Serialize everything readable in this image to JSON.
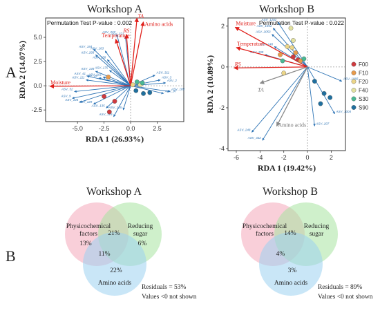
{
  "figure": {
    "panel_a_label": "A",
    "panel_b_label": "B"
  },
  "chart_data": [
    {
      "type": "scatter",
      "title": "Workshop A",
      "xlabel": "RDA 1 (26.93%)",
      "ylabel": "RDA 2 (14.07%)",
      "xlim": [
        -8,
        5
      ],
      "ylim": [
        -3.7,
        7.0
      ],
      "xticks": [
        "-5.0",
        "-2.5",
        "0.0",
        "2.5"
      ],
      "yticks": [
        "-2.5",
        "0.0",
        "2.5",
        "5.0"
      ],
      "annotation": "Permutation Test P-value : 0.002",
      "env_vectors": [
        {
          "name": "TA",
          "x": 0.6,
          "y": 7.0
        },
        {
          "name": "Amino acids",
          "x": 1.2,
          "y": 6.6
        },
        {
          "name": "RS",
          "x": -0.4,
          "y": 5.3
        },
        {
          "name": "Temperature",
          "x": -1.4,
          "y": 4.8
        },
        {
          "name": "Moisture",
          "x": -7.6,
          "y": -0.05
        }
      ],
      "species_vectors": [
        {
          "name": "ASV_227",
          "x": -1.3,
          "y": 5.3
        },
        {
          "name": "ASV_371",
          "x": -0.5,
          "y": 5.1
        },
        {
          "name": "ASV_184",
          "x": -3.5,
          "y": 3.8
        },
        {
          "name": "ASV_183",
          "x": -2.4,
          "y": 3.6
        },
        {
          "name": "ASV_268",
          "x": -3.3,
          "y": 3.2
        },
        {
          "name": "ASV_158",
          "x": -2.2,
          "y": 2.7
        },
        {
          "name": "ASV_146",
          "x": -3.3,
          "y": 1.5
        },
        {
          "name": "ASV_175",
          "x": -2.0,
          "y": 1.6
        },
        {
          "name": "ASV_41",
          "x": -4.1,
          "y": 1.0
        },
        {
          "name": "ASV_16",
          "x": -3.0,
          "y": 0.8
        },
        {
          "name": "ASV_111",
          "x": -4.2,
          "y": 0.6
        },
        {
          "name": "ASV_101",
          "x": -2.6,
          "y": 0.9
        },
        {
          "name": "ASV_52",
          "x": -5.3,
          "y": -0.6
        },
        {
          "name": "ASV_9",
          "x": -5.5,
          "y": -1.3
        },
        {
          "name": "ASV_144",
          "x": -4.8,
          "y": -1.7
        },
        {
          "name": "ASV_129",
          "x": -3.5,
          "y": -1.9
        },
        {
          "name": "ASV_135",
          "x": -2.3,
          "y": -2.3
        },
        {
          "name": "ASV_176",
          "x": -1.6,
          "y": -3.2
        },
        {
          "name": "ASV_155",
          "x": -0.7,
          "y": -2.5
        },
        {
          "name": "ASV_311",
          "x": 2.3,
          "y": 1.1
        },
        {
          "name": "ASV_3",
          "x": 2.8,
          "y": 0.6
        },
        {
          "name": "ASV_2",
          "x": 3.3,
          "y": 0.3
        },
        {
          "name": "ASV_189",
          "x": 3.7,
          "y": -0.6
        },
        {
          "name": "ASV_97",
          "x": 3.1,
          "y": -0.8
        }
      ],
      "samples": [
        {
          "group": "F00",
          "x": -2.5,
          "y": -1.1
        },
        {
          "group": "F00",
          "x": -2.0,
          "y": -2.7
        },
        {
          "group": "F00",
          "x": -1.5,
          "y": -1.6
        },
        {
          "group": "F10",
          "x": -2.1,
          "y": 0.9
        },
        {
          "group": "F20",
          "x": 0.2,
          "y": 0.1
        },
        {
          "group": "F40",
          "x": 0.9,
          "y": 0.1
        },
        {
          "group": "S30",
          "x": 0.6,
          "y": 0.4
        },
        {
          "group": "S30",
          "x": 1.1,
          "y": 0.3
        },
        {
          "group": "S90",
          "x": 1.2,
          "y": -0.8
        },
        {
          "group": "S90",
          "x": 1.8,
          "y": -0.7
        },
        {
          "group": "S90",
          "x": 0.5,
          "y": -0.5
        }
      ]
    },
    {
      "type": "scatter",
      "title": "Workshop B",
      "xlabel": "RDA 1 (19.42%)",
      "ylabel": "RDA 2 (10.89%)",
      "xlim": [
        -6.7,
        3.2
      ],
      "ylim": [
        -4.1,
        2.4
      ],
      "xticks": [
        "-6",
        "-4",
        "-2",
        "0",
        "2"
      ],
      "yticks": [
        "-4",
        "-2",
        "0",
        "2"
      ],
      "annotation": "Permutation Test P-value : 0.022",
      "env_vectors": [
        {
          "name": "Moisture",
          "x": -6.1,
          "y": 1.95
        },
        {
          "name": "Temperature",
          "x": -6.0,
          "y": 0.95
        },
        {
          "name": "RS",
          "x": -6.2,
          "y": -0.05
        },
        {
          "name": "TA",
          "x": -4.0,
          "y": -0.8,
          "muted": true
        },
        {
          "name": "Amino acids",
          "x": -2.6,
          "y": -2.9,
          "muted": true
        }
      ],
      "species_vectors": [
        {
          "name": "ASV_1202",
          "x": -2.5,
          "y": 2.2
        },
        {
          "name": "ASV_1051",
          "x": -2.9,
          "y": 1.9
        },
        {
          "name": "ASV_2053",
          "x": -3.0,
          "y": 1.6
        },
        {
          "name": "ASV_148",
          "x": -2.8,
          "y": 1.0
        },
        {
          "name": "ASV_199",
          "x": -3.6,
          "y": 0.6
        },
        {
          "name": "ASV_1066",
          "x": 2.9,
          "y": -0.7
        },
        {
          "name": "ASV_1004",
          "x": 2.3,
          "y": -2.3
        },
        {
          "name": "ASV_248",
          "x": -4.7,
          "y": -3.2
        },
        {
          "name": "ASV_332",
          "x": -3.8,
          "y": -3.6
        },
        {
          "name": "ASV_207",
          "x": 0.6,
          "y": -2.9
        }
      ],
      "samples": [
        {
          "group": "F00",
          "x": -1.2,
          "y": 0.5
        },
        {
          "group": "F00",
          "x": -0.8,
          "y": 0.35
        },
        {
          "group": "F10",
          "x": -1.0,
          "y": 0.7
        },
        {
          "group": "F10",
          "x": -2.3,
          "y": 0.6
        },
        {
          "group": "F10",
          "x": -0.6,
          "y": 0.3
        },
        {
          "group": "F20",
          "x": -1.3,
          "y": 0.95
        },
        {
          "group": "F20",
          "x": -1.7,
          "y": 1.0
        },
        {
          "group": "F20",
          "x": -2.0,
          "y": -0.3
        },
        {
          "group": "F40",
          "x": -1.4,
          "y": 1.9
        },
        {
          "group": "F40",
          "x": -1.2,
          "y": 1.3
        },
        {
          "group": "S30",
          "x": -2.1,
          "y": 0.3
        },
        {
          "group": "S30",
          "x": -0.3,
          "y": 0.4
        },
        {
          "group": "S90",
          "x": 0.6,
          "y": -0.7
        },
        {
          "group": "S90",
          "x": 1.4,
          "y": -1.3
        },
        {
          "group": "S90",
          "x": 1.9,
          "y": -1.5
        },
        {
          "group": "S90",
          "x": 1.1,
          "y": -1.8
        }
      ],
      "legend": {
        "placement": "right",
        "entries": [
          {
            "name": "F00",
            "color": "#d03a3f"
          },
          {
            "name": "F10",
            "color": "#e89a4a"
          },
          {
            "name": "F20",
            "color": "#ecd688"
          },
          {
            "name": "F40",
            "color": "#e3e2a0"
          },
          {
            "name": "S30",
            "color": "#49b994"
          },
          {
            "name": "S90",
            "color": "#1f6f9e"
          }
        ]
      }
    },
    {
      "type": "venn",
      "title": "Workshop A",
      "sets": [
        "Physicochemical factors",
        "Reducing sugar",
        "Amino acids"
      ],
      "set_label_lines": [
        [
          "Physicochemical",
          "factors"
        ],
        [
          "Reducing",
          "sugar"
        ],
        [
          "Amino acids"
        ]
      ],
      "regions": {
        "physicochemical_only": "13%",
        "reducing_sugar_only": "6%",
        "amino_acids_only": "22%",
        "physicochemical_reducing": "21%",
        "physicochemical_amino": "11%"
      },
      "residuals": "Residuals = 53%",
      "note": "Values <0 not shown",
      "colors": {
        "physicochemical": "#f4a7b9",
        "reducing": "#a8e3a0",
        "amino": "#9cd2f0"
      }
    },
    {
      "type": "venn",
      "title": "Workshop B",
      "sets": [
        "Physicochemical factors",
        "Reducing sugar",
        "Amino acids"
      ],
      "set_label_lines": [
        [
          "Physicochemical",
          "factors"
        ],
        [
          "Reducing",
          "sugar"
        ],
        [
          "Amino acids"
        ]
      ],
      "regions": {
        "physicochemical_reducing": "14%",
        "physicochemical_amino": "4%",
        "amino_acids_only": "3%"
      },
      "residuals": "Residuals = 89%",
      "note": "Values <0 not shown",
      "colors": {
        "physicochemical": "#f4a7b9",
        "reducing": "#a8e3a0",
        "amino": "#9cd2f0"
      }
    }
  ]
}
